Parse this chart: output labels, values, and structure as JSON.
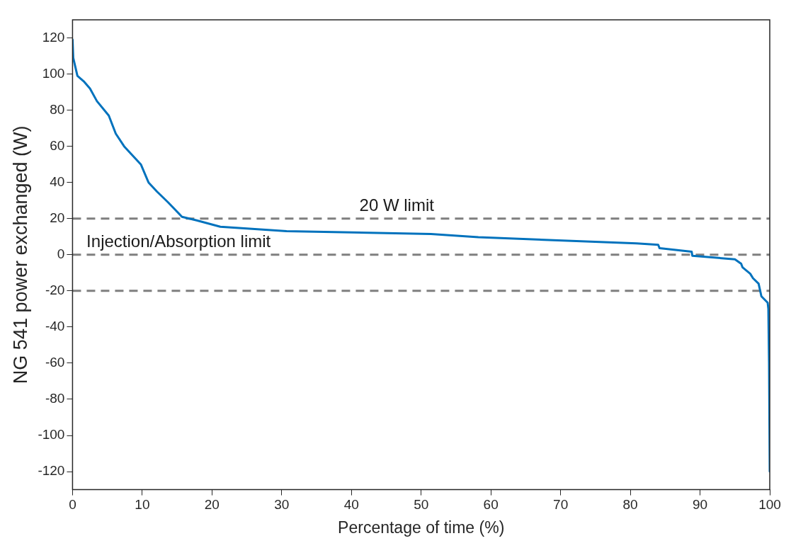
{
  "chart_data": {
    "type": "line",
    "xlabel": "Percentage of time (%)",
    "ylabel": "NG 541 power exchanged (W)",
    "xlim": [
      0,
      100
    ],
    "xticks": [
      0,
      10,
      20,
      30,
      40,
      50,
      60,
      70,
      80,
      90,
      100
    ],
    "ylim": [
      -130,
      130
    ],
    "yticks": [
      -120,
      -100,
      -80,
      -60,
      -40,
      -20,
      0,
      20,
      40,
      60,
      80,
      100,
      120
    ],
    "grid": false,
    "legend": false,
    "marker": "none",
    "line_style": "solid",
    "series": [
      {
        "color": "#0072bd",
        "x": [
          0,
          0.1,
          0.7,
          1.6,
          2.5,
          3.5,
          5.2,
          6.2,
          7.4,
          9.8,
          10.9,
          12.1,
          13.7,
          15.7,
          17.8,
          21.2,
          30.7,
          51.4,
          58.2,
          80.9,
          84,
          84.2,
          88.8,
          88.9,
          95,
          95.9,
          96.1,
          97.2,
          97.6,
          98.4,
          98.8,
          99.7,
          99.8,
          99.9,
          100
        ],
        "values": [
          119,
          109,
          99,
          96,
          92,
          85,
          77,
          67,
          60,
          50,
          40,
          35,
          29,
          21,
          19,
          15.5,
          13,
          11.5,
          9.7,
          6.3,
          5.5,
          3.6,
          1.7,
          -0.6,
          -2.5,
          -5,
          -7,
          -10.5,
          -13,
          -16,
          -23,
          -26.5,
          -30,
          -60,
          -120
        ]
      }
    ],
    "ref_lines": [
      {
        "axis": "y",
        "value": 20,
        "label": "20 W limit",
        "color": "#7f7f7f",
        "line_style": "dashed"
      },
      {
        "axis": "y",
        "value": 0,
        "label": "Injection/Absorption limit",
        "color": "#7f7f7f",
        "line_style": "dashed"
      },
      {
        "axis": "y",
        "value": -20,
        "color": "#7f7f7f",
        "line_style": "dashed"
      }
    ]
  }
}
